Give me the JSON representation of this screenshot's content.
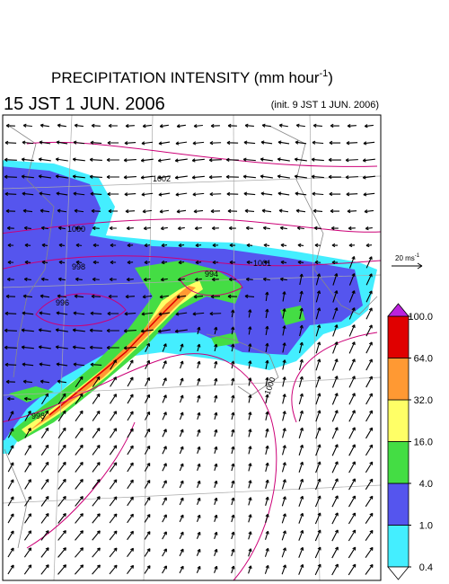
{
  "title": {
    "main": "PRECIPITATION INTENSITY (mm hour",
    "sup": "-1",
    "end": ")"
  },
  "valid_time": "15 JST 1 JUN. 2006",
  "init_time": "(init. 9 JST 1 JUN. 2006)",
  "wind_reference": {
    "text": "20 ms",
    "sup": "-1"
  },
  "colorbar": {
    "levels": [
      0.4,
      {
        "value": 1,
        "label": "1.0"
      },
      {
        "value": 4,
        "label": "4.0"
      },
      {
        "value": 16,
        "label": "16.0"
      },
      {
        "value": 32,
        "label": "32.0"
      },
      {
        "value": 64,
        "label": "64.0"
      },
      {
        "value": 100,
        "label": "100.0"
      }
    ],
    "colors": [
      "#44eeff",
      "#5555ee",
      "#44dd44",
      "#ffff66",
      "#ff9933",
      "#e00000"
    ],
    "under_color": "#ffffff",
    "over_color": "#bb22dd"
  },
  "isobar_labels": [
    "1002",
    "1000",
    "998",
    "996",
    "994",
    "1001",
    "1000",
    "998"
  ]
}
